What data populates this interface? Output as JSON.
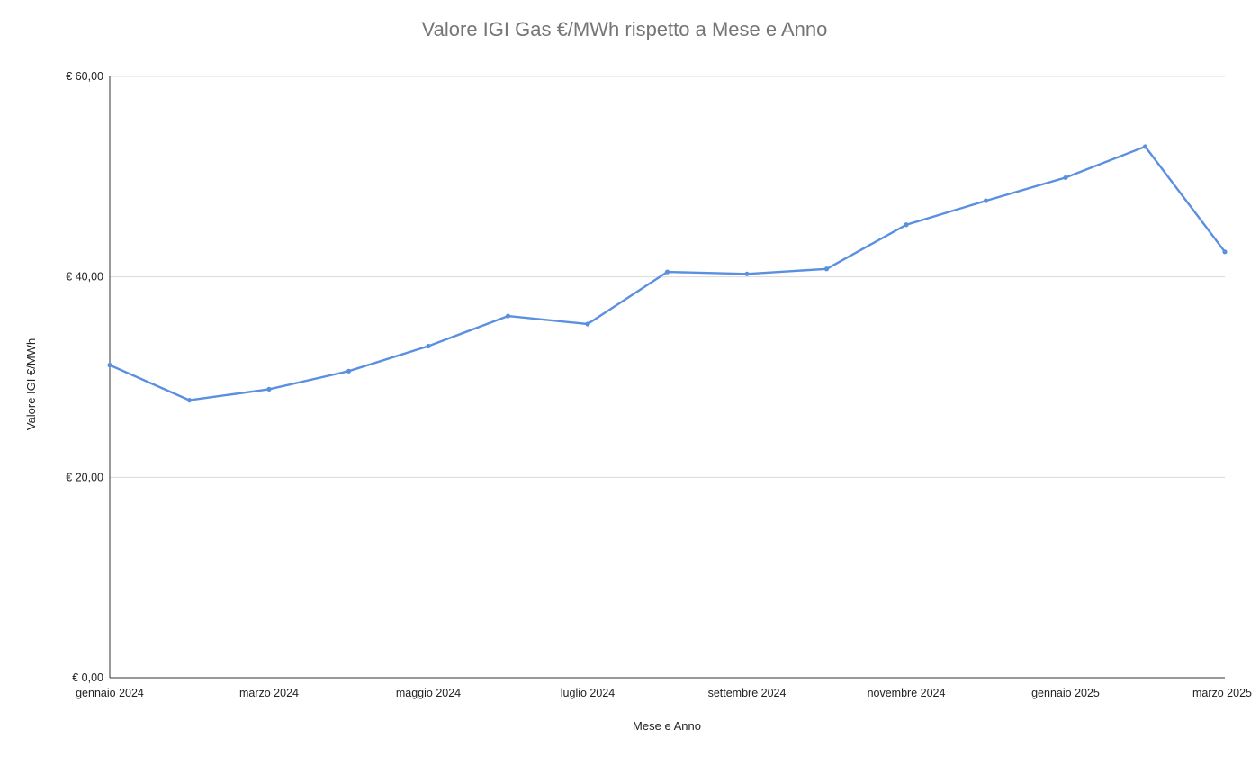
{
  "chart_data": {
    "type": "line",
    "title": "Valore IGI Gas €/MWh rispetto a Mese e Anno",
    "xlabel": "Mese e Anno",
    "ylabel": "Valore IGI €/MWh",
    "x": [
      "2024-01",
      "2024-02",
      "2024-03",
      "2024-04",
      "2024-05",
      "2024-06",
      "2024-07",
      "2024-08",
      "2024-09",
      "2024-10",
      "2024-11",
      "2024-12",
      "2025-01",
      "2025-02",
      "2025-03"
    ],
    "x_tick_labels": [
      "gennaio 2024",
      "marzo 2024",
      "maggio 2024",
      "luglio 2024",
      "settembre 2024",
      "novembre 2024",
      "gennaio 2025",
      "marzo 2025"
    ],
    "y_tick_labels": [
      "€ 0,00",
      "€ 20,00",
      "€ 40,00",
      "€ 60,00"
    ],
    "y_ticks": [
      0,
      20,
      40,
      60
    ],
    "ylim": [
      0,
      60
    ],
    "series": [
      {
        "values": [
          31.2,
          27.7,
          28.8,
          30.6,
          33.1,
          36.1,
          35.3,
          40.5,
          40.3,
          40.8,
          45.2,
          47.6,
          49.9,
          53.0,
          42.5
        ]
      }
    ],
    "grid": true,
    "legend": "none",
    "line_color": "#5b8fe0",
    "axis_color": "#333333",
    "grid_color": "#d9d9d9"
  }
}
